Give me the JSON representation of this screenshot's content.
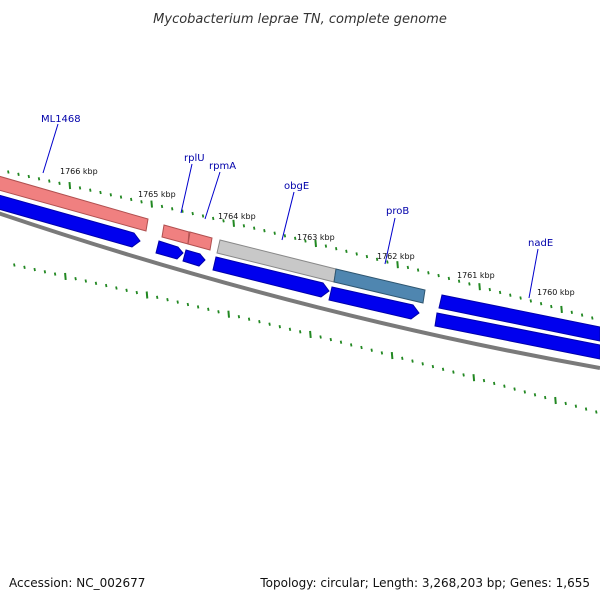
{
  "title": "Mycobacterium leprae TN, complete genome",
  "footer": {
    "accession": "Accession: NC_002677",
    "summary": "Topology: circular; Length: 3,268,203 bp; Genes: 1,655"
  },
  "colors": {
    "background": "#ffffff",
    "backbone": "#7a7a7a",
    "cds": "#0000ee",
    "gene_pink": "#f08080",
    "gene_grey": "#c0c0c0",
    "gene_steel": "#4f86b0",
    "ticks": "#228822",
    "label_line": "#0000cc"
  },
  "scale_labels": [
    "1766 kbp",
    "1765 kbp",
    "1764 kbp",
    "1763 kbp",
    "1762 kbp",
    "1761 kbp",
    "1760 kbp"
  ],
  "gene_labels": [
    "ML1468",
    "rplU",
    "rpmA",
    "obgE",
    "proB",
    "nadE"
  ]
}
